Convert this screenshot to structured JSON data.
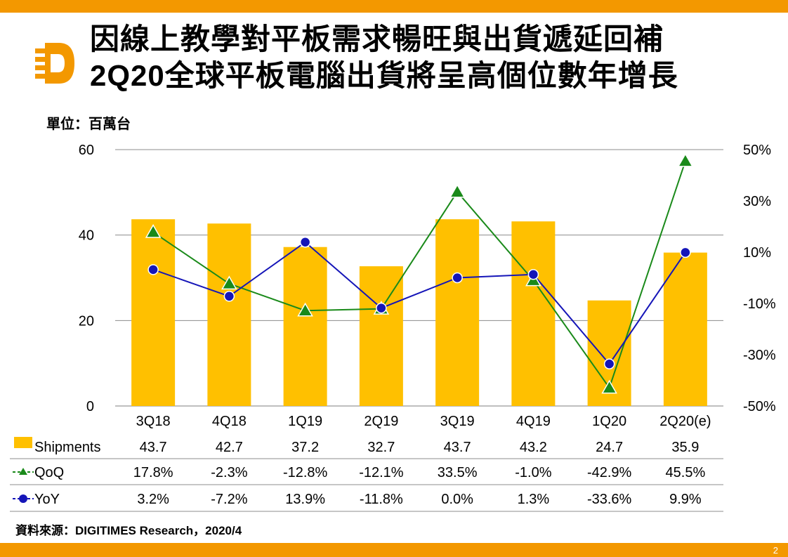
{
  "header": {
    "title_line1": "因線上教學對平板需求暢旺與出貨遞延回補",
    "title_line2": "2Q20全球平板電腦出貨將呈高個位數年增長",
    "unit": "單位：百萬台"
  },
  "footer": {
    "source": "資料來源：DIGITIMES Research，2020/4",
    "page_number": "2"
  },
  "colors": {
    "bar": "#ffc000",
    "qoq": "#1a8a1a",
    "yoy": "#1515b8",
    "accent": "#f39800"
  },
  "chart_data": {
    "type": "bar",
    "categories": [
      "3Q18",
      "4Q18",
      "1Q19",
      "2Q19",
      "3Q19",
      "4Q19",
      "1Q20",
      "2Q20(e)"
    ],
    "y_left": {
      "ylim": [
        0,
        60
      ],
      "ticks": [
        0,
        20,
        40,
        60
      ],
      "tick_labels": [
        "0",
        "20",
        "40",
        "60"
      ]
    },
    "y_right": {
      "ylim": [
        -50,
        50
      ],
      "ticks": [
        -50,
        -30,
        -10,
        10,
        30,
        50
      ],
      "tick_labels": [
        "-50%",
        "-30%",
        "-10%",
        "10%",
        "30%",
        "50%"
      ]
    },
    "series": [
      {
        "name": "Shipments",
        "type": "bar",
        "axis": "left",
        "values": [
          43.7,
          42.7,
          37.2,
          32.7,
          43.7,
          43.2,
          24.7,
          35.9
        ],
        "labels": [
          "43.7",
          "42.7",
          "37.2",
          "32.7",
          "43.7",
          "43.2",
          "24.7",
          "35.9"
        ]
      },
      {
        "name": "QoQ",
        "type": "line",
        "marker": "triangle",
        "axis": "right",
        "values": [
          17.8,
          -2.3,
          -12.8,
          -12.1,
          33.5,
          -1.0,
          -42.9,
          45.5
        ],
        "labels": [
          "17.8%",
          "-2.3%",
          "-12.8%",
          "-12.1%",
          "33.5%",
          "-1.0%",
          "-42.9%",
          "45.5%"
        ]
      },
      {
        "name": "YoY",
        "type": "line",
        "marker": "circle",
        "axis": "right",
        "values": [
          3.2,
          -7.2,
          13.9,
          -11.8,
          0.0,
          1.3,
          -33.6,
          9.9
        ],
        "labels": [
          "3.2%",
          "-7.2%",
          "13.9%",
          "-11.8%",
          "0.0%",
          "1.3%",
          "-33.6%",
          "9.9%"
        ]
      }
    ],
    "grid": true,
    "legend": "data-table-below"
  }
}
